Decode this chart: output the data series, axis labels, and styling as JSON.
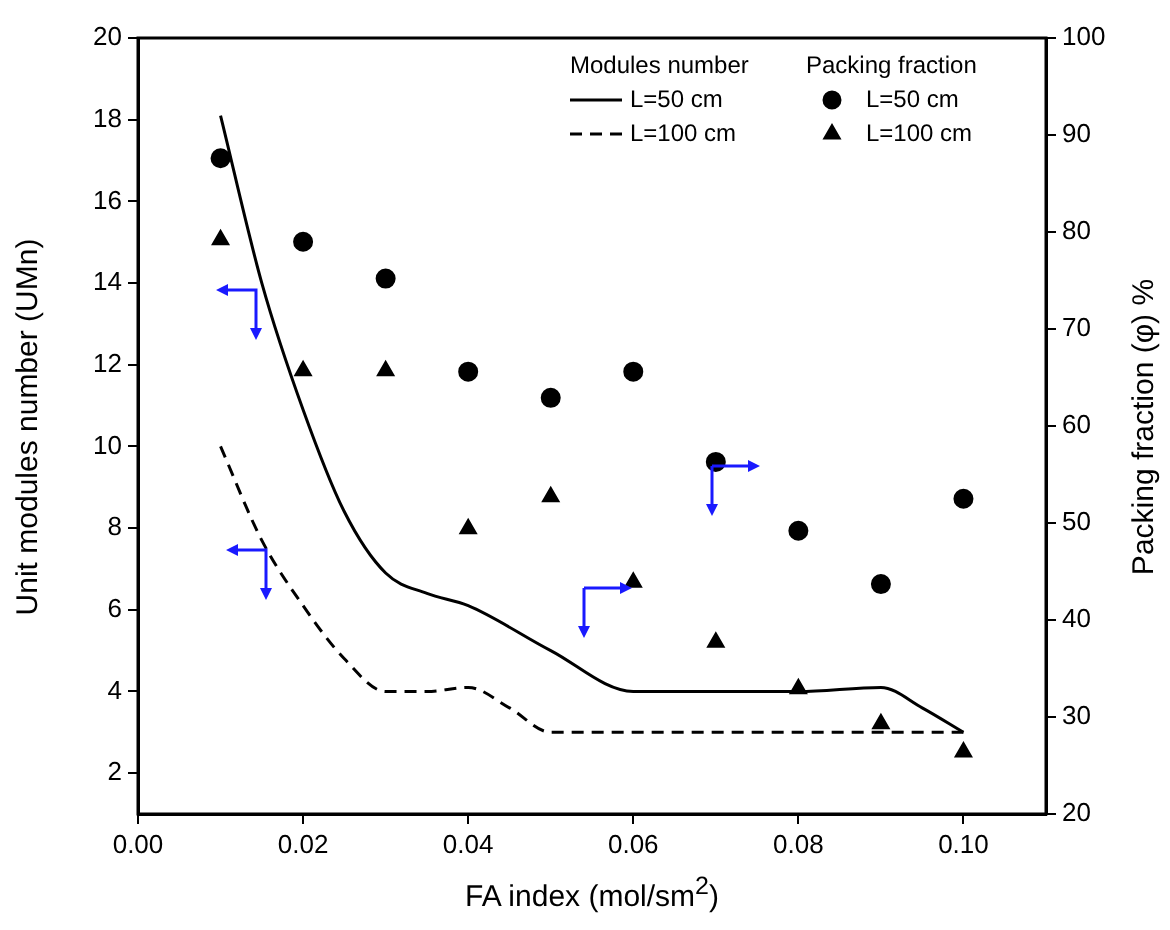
{
  "chart_data": {
    "type": "line",
    "xlabel": "FA index (mol/sm$^{2}$)",
    "ylabel": "Unit modules number (UMn)",
    "y2label": "Packing fraction (φ) %",
    "xlim": [
      0,
      0.11
    ],
    "xticks": [
      {
        "value": 0,
        "label": "0.00"
      },
      {
        "value": 0.02,
        "label": "0.02"
      },
      {
        "value": 0.04,
        "label": "0.04"
      },
      {
        "value": 0.06,
        "label": "0.06"
      },
      {
        "value": 0.08,
        "label": "0.08"
      },
      {
        "value": 0.1,
        "label": "0.10"
      }
    ],
    "ylim": [
      1,
      20
    ],
    "yticks": [
      2,
      4,
      6,
      8,
      10,
      12,
      14,
      16,
      18,
      20
    ],
    "y2lim": [
      20,
      100
    ],
    "y2ticks": [
      20,
      30,
      40,
      50,
      60,
      70,
      80,
      90,
      100
    ],
    "grid": false,
    "legend": "top right",
    "annotations": [
      "Modules number",
      "Packing fraction"
    ],
    "series": [
      {
        "name": "L=50 cm",
        "color": "#000000",
        "marker": "none",
        "line_style": "solid",
        "x": [
          0.01,
          0.015,
          0.02,
          0.025,
          0.03,
          0.035,
          0.04,
          0.05,
          0.06,
          0.07,
          0.08,
          0.09,
          0.095,
          0.1
        ],
        "values": [
          18.1,
          14,
          10.9,
          8.4,
          6.9,
          6.4,
          6.1,
          5.0,
          4.0,
          4.0,
          4.0,
          4.1,
          3.6,
          3.0
        ]
      },
      {
        "name": "L=100 cm",
        "color": "#000000",
        "marker": "none",
        "line_style": "dashed",
        "x": [
          0.01,
          0.015,
          0.02,
          0.025,
          0.03,
          0.035,
          0.04,
          0.045,
          0.05,
          0.06,
          0.1
        ],
        "values": [
          10.0,
          7.7,
          6.1,
          4.8,
          4.0,
          4.0,
          4.1,
          3.6,
          3.0,
          3.0,
          3.0
        ]
      },
      {
        "type": "scatter",
        "name": "L=50 cm",
        "color": "#000000",
        "marker": "circle",
        "axis": "y2",
        "x": [
          0.01,
          0.02,
          0.03,
          0.04,
          0.05,
          0.06,
          0.07,
          0.08,
          0.09,
          0.1
        ],
        "values": [
          87.6,
          79.0,
          75.2,
          65.6,
          62.9,
          65.6,
          56.3,
          49.2,
          43.7,
          52.5
        ]
      },
      {
        "type": "scatter",
        "name": "L=100 cm",
        "color": "#000000",
        "marker": "triangle",
        "axis": "y2",
        "x": [
          0.01,
          0.02,
          0.03,
          0.04,
          0.05,
          0.06,
          0.07,
          0.08,
          0.09,
          0.1
        ],
        "values": [
          79.2,
          65.7,
          65.7,
          49.4,
          52.7,
          43.9,
          37.7,
          32.9,
          29.3,
          26.4
        ]
      }
    ]
  }
}
